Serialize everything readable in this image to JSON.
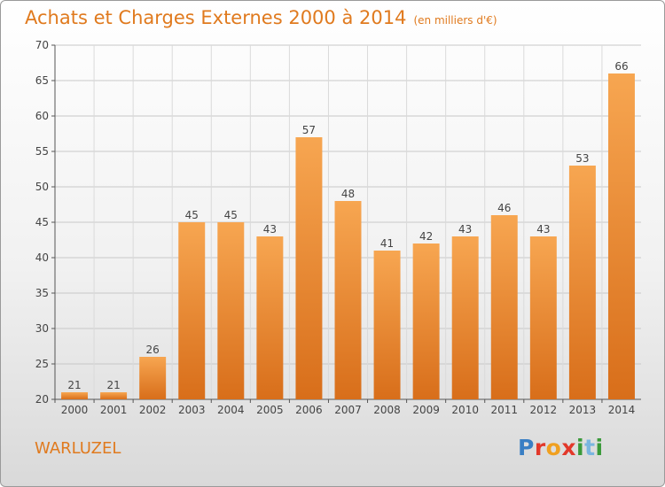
{
  "header": {
    "title": "Achats et Charges Externes 2000 à 2014",
    "subtitle": "(en milliers d'€)"
  },
  "footer": {
    "location": "WARLUZEL",
    "logo_text": "Proxiti"
  },
  "colors": {
    "bar_top": "#f7a651",
    "bar_bottom": "#d86e1a",
    "title": "#e07a1e",
    "grid": "#c8c8c8"
  },
  "chart_data": {
    "type": "bar",
    "title": "Achats et Charges Externes 2000 à 2014",
    "subtitle": "(en milliers d'€)",
    "xlabel": "",
    "ylabel": "",
    "categories": [
      "2000",
      "2001",
      "2002",
      "2003",
      "2004",
      "2005",
      "2006",
      "2007",
      "2008",
      "2009",
      "2010",
      "2011",
      "2012",
      "2013",
      "2014"
    ],
    "values": [
      21,
      21,
      26,
      45,
      45,
      43,
      57,
      48,
      41,
      42,
      43,
      46,
      43,
      53,
      66
    ],
    "ylim": [
      20,
      70
    ],
    "yticks": [
      20,
      25,
      30,
      35,
      40,
      45,
      50,
      55,
      60,
      65,
      70
    ],
    "grid": true,
    "data_labels": true
  }
}
